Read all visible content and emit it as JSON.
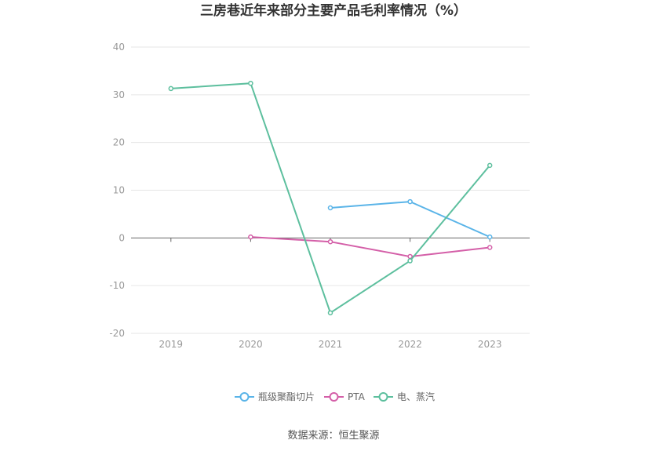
{
  "chart_data": {
    "type": "line",
    "title": "三房巷近年来部分主要产品毛利率情况（%）",
    "x": [
      "2019",
      "2020",
      "2021",
      "2022",
      "2023"
    ],
    "yticks": [
      40,
      30,
      20,
      10,
      0,
      -10,
      -20
    ],
    "ylim": [
      -20,
      40
    ],
    "grid": true,
    "legend_position": "bottom",
    "series": [
      {
        "name": "瓶级聚酯切片",
        "color": "#5ab4e8",
        "values": [
          null,
          null,
          6.3,
          7.6,
          0.2
        ]
      },
      {
        "name": "PTA",
        "color": "#d45fa8",
        "values": [
          null,
          0.2,
          -0.8,
          -3.9,
          -2.0
        ]
      },
      {
        "name": "电、蒸汽",
        "color": "#5dbf9e",
        "values": [
          31.3,
          32.4,
          -15.7,
          -4.8,
          15.2
        ]
      }
    ]
  },
  "source": "数据来源：恒生聚源"
}
